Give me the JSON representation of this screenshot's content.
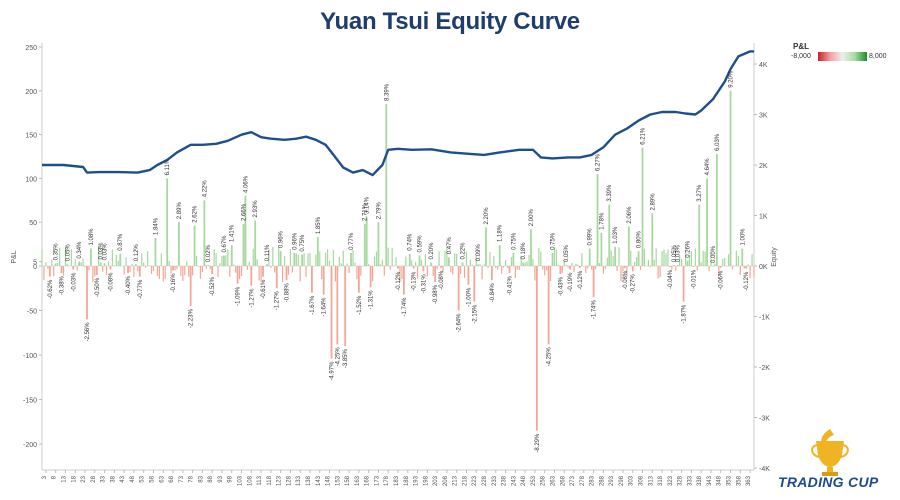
{
  "chart_data": {
    "type": "bar",
    "title": "Yuan Tsui Equity Curve",
    "ylabel": "P&L",
    "y2label": "Equity",
    "ylim": [
      -225,
      250
    ],
    "y2lim": [
      -4200,
      4300
    ],
    "yticks": [
      250,
      200,
      150,
      100,
      50,
      5,
      0,
      -50,
      -100,
      -150,
      -200
    ],
    "yticks_labels": [
      "250",
      "200",
      "150",
      "100",
      "50",
      "5",
      "0",
      "-50",
      "-100",
      "-150",
      "-200"
    ],
    "y2ticks": [
      4000,
      3000,
      2000,
      1000,
      0,
      -1000,
      -2000,
      -3000,
      -4000
    ],
    "y2ticks_labels": [
      "4K",
      "3K",
      "2K",
      "1K",
      "0K",
      "-1K",
      "-2K",
      "-3K",
      "-4K"
    ],
    "grid": false,
    "x_min": 1,
    "x_max": 365,
    "xticks": [
      "3",
      "8",
      "13",
      "18",
      "23",
      "28",
      "33",
      "38",
      "43",
      "48",
      "53",
      "58",
      "63",
      "68",
      "73",
      "78",
      "83",
      "88",
      "93",
      "98",
      "103",
      "108",
      "113",
      "118",
      "123",
      "128",
      "133",
      "138",
      "143",
      "148",
      "153",
      "158",
      "163",
      "168",
      "173",
      "178",
      "183",
      "188",
      "193",
      "198",
      "203",
      "208",
      "213",
      "218",
      "223",
      "228",
      "233",
      "238",
      "243",
      "248",
      "253",
      "258",
      "263",
      "268",
      "273",
      "278",
      "283",
      "288",
      "293",
      "298",
      "303",
      "308",
      "313",
      "318",
      "323",
      "328",
      "333",
      "338",
      "343",
      "348",
      "353",
      "358",
      "363"
    ],
    "pnl": [
      {
        "x": 5,
        "y": -12,
        "label": "-0.62%"
      },
      {
        "x": 8,
        "y": 3,
        "label": "0.35%"
      },
      {
        "x": 11,
        "y": -8,
        "label": "-0.38%"
      },
      {
        "x": 14,
        "y": 2,
        "label": "0.05%"
      },
      {
        "x": 17,
        "y": -4,
        "label": "-0.03%"
      },
      {
        "x": 20,
        "y": 5,
        "label": "0.34%"
      },
      {
        "x": 24,
        "y": -60,
        "label": "-2.56%"
      },
      {
        "x": 26,
        "y": 20,
        "label": "1.08%"
      },
      {
        "x": 29,
        "y": -10,
        "label": "-0.50%"
      },
      {
        "x": 31,
        "y": 4,
        "label": "0.03%"
      },
      {
        "x": 33,
        "y": 3,
        "label": "0.03%"
      },
      {
        "x": 36,
        "y": -4,
        "label": "-0.08%"
      },
      {
        "x": 41,
        "y": 14,
        "label": "0.87%"
      },
      {
        "x": 45,
        "y": -8,
        "label": "-0.40%"
      },
      {
        "x": 49,
        "y": 2,
        "label": "0.12%"
      },
      {
        "x": 51,
        "y": -12,
        "label": "-0.77%"
      },
      {
        "x": 59,
        "y": 32,
        "label": "1.84%"
      },
      {
        "x": 65,
        "y": 100,
        "label": "6.11%"
      },
      {
        "x": 68,
        "y": -5,
        "label": "-0.16%"
      },
      {
        "x": 71,
        "y": 50,
        "label": "2.89%"
      },
      {
        "x": 77,
        "y": -45,
        "label": "-2.23%"
      },
      {
        "x": 79,
        "y": 46,
        "label": "2.62%"
      },
      {
        "x": 84,
        "y": 75,
        "label": "4.22%"
      },
      {
        "x": 86,
        "y": 1,
        "label": "0.02%"
      },
      {
        "x": 88,
        "y": -9,
        "label": "-0.52%"
      },
      {
        "x": 94,
        "y": 12,
        "label": "0.67%"
      },
      {
        "x": 98,
        "y": 24,
        "label": "1.41%"
      },
      {
        "x": 101,
        "y": -20,
        "label": "-1.09%"
      },
      {
        "x": 104,
        "y": 48,
        "label": "2.66%"
      },
      {
        "x": 105,
        "y": 80,
        "label": "4.06%"
      },
      {
        "x": 108,
        "y": -22,
        "label": "-1.27%"
      },
      {
        "x": 110,
        "y": 52,
        "label": "2.93%"
      },
      {
        "x": 114,
        "y": -12,
        "label": "-0.61%"
      },
      {
        "x": 116,
        "y": 2,
        "label": "0.11%"
      },
      {
        "x": 121,
        "y": -25,
        "label": "-1.27%"
      },
      {
        "x": 123,
        "y": 17,
        "label": "0.96%"
      },
      {
        "x": 126,
        "y": -16,
        "label": "-0.88%"
      },
      {
        "x": 130,
        "y": 15,
        "label": "0.96%"
      },
      {
        "x": 134,
        "y": 13,
        "label": "0.75%"
      },
      {
        "x": 139,
        "y": -30,
        "label": "-1.67%"
      },
      {
        "x": 142,
        "y": 33,
        "label": "1.85%"
      },
      {
        "x": 145,
        "y": -32,
        "label": "-1.64%"
      },
      {
        "x": 149,
        "y": -104,
        "label": "-4.97%"
      },
      {
        "x": 152,
        "y": -88,
        "label": "-4.25%"
      },
      {
        "x": 156,
        "y": -90,
        "label": "-3.85%"
      },
      {
        "x": 159,
        "y": 15,
        "label": "0.77%"
      },
      {
        "x": 163,
        "y": -30,
        "label": "-1.52%"
      },
      {
        "x": 166,
        "y": 48,
        "label": "2.71%"
      },
      {
        "x": 167,
        "y": 56,
        "label": "3.14%"
      },
      {
        "x": 169,
        "y": -24,
        "label": "-1.31%"
      },
      {
        "x": 173,
        "y": 50,
        "label": "2.79%"
      },
      {
        "x": 177,
        "y": 185,
        "label": "8.39%"
      },
      {
        "x": 183,
        "y": -3,
        "label": "-0.12%"
      },
      {
        "x": 186,
        "y": -32,
        "label": "-1.74%"
      },
      {
        "x": 189,
        "y": 14,
        "label": "0.74%"
      },
      {
        "x": 191,
        "y": -3,
        "label": "-0.13%"
      },
      {
        "x": 194,
        "y": 12,
        "label": "0.59%"
      },
      {
        "x": 196,
        "y": -6,
        "label": "-0.31%"
      },
      {
        "x": 200,
        "y": 4,
        "label": "0.20%"
      },
      {
        "x": 202,
        "y": -18,
        "label": "-0.98%"
      },
      {
        "x": 205,
        "y": -2,
        "label": "-0.08%"
      },
      {
        "x": 209,
        "y": 10,
        "label": "0.47%"
      },
      {
        "x": 214,
        "y": -50,
        "label": "-2.64%"
      },
      {
        "x": 216,
        "y": 4,
        "label": "0.22%"
      },
      {
        "x": 219,
        "y": -21,
        "label": "-1.00%"
      },
      {
        "x": 222,
        "y": -40,
        "label": "-2.15%"
      },
      {
        "x": 224,
        "y": 2,
        "label": "0.09%"
      },
      {
        "x": 228,
        "y": 44,
        "label": "2.20%"
      },
      {
        "x": 231,
        "y": -16,
        "label": "-0.84%"
      },
      {
        "x": 235,
        "y": 24,
        "label": "1.18%"
      },
      {
        "x": 240,
        "y": -8,
        "label": "-0.41%"
      },
      {
        "x": 242,
        "y": 15,
        "label": "0.75%"
      },
      {
        "x": 247,
        "y": 4,
        "label": "0.18%"
      },
      {
        "x": 251,
        "y": 42,
        "label": "2.00%"
      },
      {
        "x": 254,
        "y": -185,
        "label": "-8.29%"
      },
      {
        "x": 260,
        "y": -88,
        "label": "-4.25%"
      },
      {
        "x": 262,
        "y": 15,
        "label": "0.75%"
      },
      {
        "x": 266,
        "y": -9,
        "label": "-0.43%"
      },
      {
        "x": 269,
        "y": 1,
        "label": "0.05%"
      },
      {
        "x": 271,
        "y": -4,
        "label": "-0.19%"
      },
      {
        "x": 276,
        "y": -2,
        "label": "-0.12%"
      },
      {
        "x": 281,
        "y": 20,
        "label": "0.99%"
      },
      {
        "x": 283,
        "y": -35,
        "label": "-1.74%"
      },
      {
        "x": 285,
        "y": 105,
        "label": "6.27%"
      },
      {
        "x": 287,
        "y": 38,
        "label": "1.78%"
      },
      {
        "x": 291,
        "y": 70,
        "label": "3.39%"
      },
      {
        "x": 294,
        "y": 22,
        "label": "1.03%"
      },
      {
        "x": 299,
        "y": -2,
        "label": "-0.08%"
      },
      {
        "x": 301,
        "y": 45,
        "label": "2.06%"
      },
      {
        "x": 303,
        "y": -6,
        "label": "-0.27%"
      },
      {
        "x": 306,
        "y": 17,
        "label": "0.80%"
      },
      {
        "x": 308,
        "y": 135,
        "label": "6.21%"
      },
      {
        "x": 313,
        "y": 60,
        "label": "2.89%"
      },
      {
        "x": 322,
        "y": -1,
        "label": "-0.04%"
      },
      {
        "x": 324,
        "y": 1,
        "label": "0.05%"
      },
      {
        "x": 326,
        "y": 1,
        "label": "0.03%"
      },
      {
        "x": 329,
        "y": -40,
        "label": "-1.87%"
      },
      {
        "x": 331,
        "y": 6,
        "label": "0.26%"
      },
      {
        "x": 334,
        "y": -1,
        "label": "-0.01%"
      },
      {
        "x": 337,
        "y": 70,
        "label": "3.27%"
      },
      {
        "x": 341,
        "y": 100,
        "label": "4.64%"
      },
      {
        "x": 344,
        "y": 0,
        "label": "0.00%"
      },
      {
        "x": 346,
        "y": 128,
        "label": "6.03%"
      },
      {
        "x": 348,
        "y": -2,
        "label": "-0.06%"
      },
      {
        "x": 353,
        "y": 200,
        "label": "9.20%"
      },
      {
        "x": 359,
        "y": 20,
        "label": "1.00%"
      },
      {
        "x": 361,
        "y": -3,
        "label": "-0.12%"
      }
    ],
    "equity": [
      [
        1,
        2000
      ],
      [
        12,
        2000
      ],
      [
        22,
        1960
      ],
      [
        24,
        1850
      ],
      [
        30,
        1860
      ],
      [
        40,
        1860
      ],
      [
        50,
        1850
      ],
      [
        56,
        1900
      ],
      [
        60,
        2000
      ],
      [
        65,
        2100
      ],
      [
        70,
        2250
      ],
      [
        77,
        2400
      ],
      [
        83,
        2400
      ],
      [
        90,
        2420
      ],
      [
        96,
        2480
      ],
      [
        103,
        2600
      ],
      [
        108,
        2650
      ],
      [
        113,
        2550
      ],
      [
        118,
        2520
      ],
      [
        125,
        2500
      ],
      [
        131,
        2520
      ],
      [
        136,
        2560
      ],
      [
        141,
        2500
      ],
      [
        146,
        2400
      ],
      [
        150,
        2200
      ],
      [
        155,
        1950
      ],
      [
        160,
        1850
      ],
      [
        165,
        1900
      ],
      [
        170,
        1800
      ],
      [
        175,
        2000
      ],
      [
        178,
        2300
      ],
      [
        183,
        2320
      ],
      [
        190,
        2300
      ],
      [
        200,
        2310
      ],
      [
        210,
        2250
      ],
      [
        220,
        2220
      ],
      [
        227,
        2200
      ],
      [
        235,
        2250
      ],
      [
        245,
        2300
      ],
      [
        252,
        2300
      ],
      [
        256,
        2150
      ],
      [
        262,
        2130
      ],
      [
        270,
        2150
      ],
      [
        276,
        2150
      ],
      [
        282,
        2200
      ],
      [
        288,
        2350
      ],
      [
        294,
        2600
      ],
      [
        300,
        2720
      ],
      [
        306,
        2880
      ],
      [
        312,
        3000
      ],
      [
        318,
        3050
      ],
      [
        325,
        3050
      ],
      [
        330,
        3020
      ],
      [
        335,
        3000
      ],
      [
        338,
        3080
      ],
      [
        344,
        3300
      ],
      [
        350,
        3650
      ],
      [
        353,
        3900
      ],
      [
        357,
        4150
      ],
      [
        363,
        4250
      ],
      [
        365,
        4250
      ]
    ],
    "color_legend": {
      "title": "P&L",
      "min_label": "-8,000",
      "max_label": "8,000"
    },
    "colors": {
      "positive": "#a6d89f",
      "negative": "#f2a695",
      "equity_line": "#1f4e8c",
      "title": "#1f3d6e"
    }
  },
  "logo": {
    "text": "TRADING CUP"
  }
}
